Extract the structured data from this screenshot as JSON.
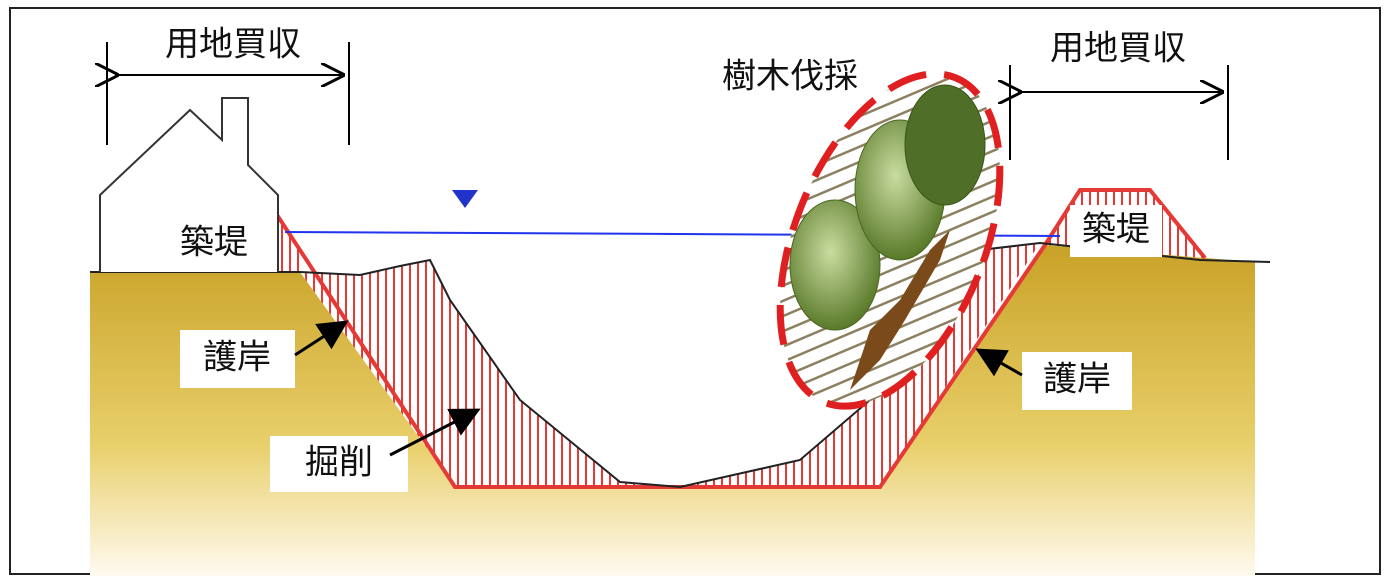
{
  "labels": {
    "land_acquisition": [
      "用地買収",
      "用地買収"
    ],
    "tree_felling": "樹木伐採",
    "embankment": [
      "築堤",
      "築堤"
    ],
    "revetment": [
      "護岸",
      "護岸"
    ],
    "excavation": "掘削"
  }
}
